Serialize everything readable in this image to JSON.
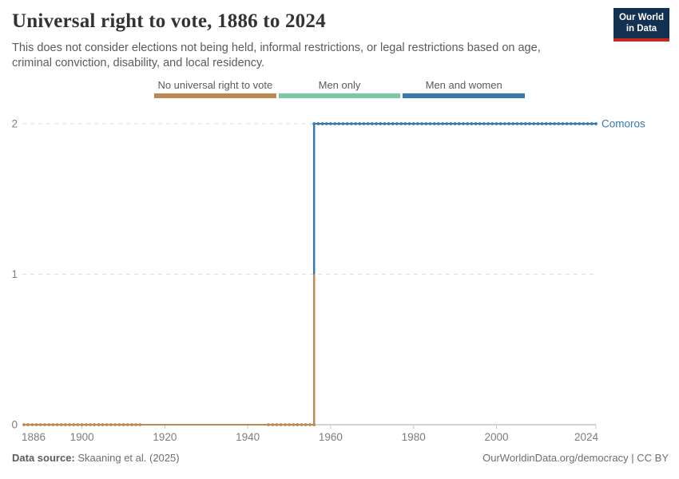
{
  "header": {
    "title": "Universal right to vote, 1886 to 2024",
    "subtitle": "This does not consider elections not being held, informal restrictions, or legal restrictions based on age, criminal conviction, disability, and local residency.",
    "logo": {
      "line1": "Our World",
      "line2": "in Data",
      "bg_color": "#12304F",
      "accent_color": "#C5281C"
    }
  },
  "legend": {
    "items": [
      {
        "label": "No universal right to vote",
        "color": "#BE8A52"
      },
      {
        "label": "Men only",
        "color": "#7DC8A4"
      },
      {
        "label": "Men and women",
        "color": "#3779B0"
      }
    ]
  },
  "chart_data": {
    "type": "line",
    "title": "Universal right to vote, 1886 to 2024",
    "entity": "Comoros",
    "entity_color": "#3779B0",
    "xlim": [
      1886,
      2024
    ],
    "ylim": [
      0,
      2
    ],
    "x_ticks": [
      1886,
      1900,
      1920,
      1940,
      1960,
      1980,
      2000,
      2024
    ],
    "y_ticks": [
      0,
      1,
      2
    ],
    "value_categories": {
      "0": "No universal right to vote",
      "1": "Men only",
      "2": "Men and women"
    },
    "series": [
      {
        "name": "Comoros",
        "steps": [
          {
            "from_year": 1886,
            "to_year": 1955,
            "value": 0,
            "category": "No universal right to vote",
            "color": "#BE8A52"
          },
          {
            "from_year": 1956,
            "to_year": 2024,
            "value": 2,
            "category": "Men and women",
            "color": "#3779B0"
          }
        ]
      }
    ],
    "render_segments": {
      "horizontal": [
        {
          "x1": 1886,
          "x2": 1914,
          "value": 0,
          "color": "#BE8A52",
          "markers": true
        },
        {
          "x1": 1914,
          "x2": 1945,
          "value": 0,
          "color": "#BE8A52",
          "markers": false
        },
        {
          "x1": 1945,
          "x2": 1956,
          "value": 0,
          "color": "#BE8A52",
          "markers": true
        },
        {
          "x1": 1956,
          "x2": 2024,
          "value": 2,
          "color": "#3779B0",
          "markers": true
        }
      ],
      "vertical": [
        {
          "x": 1956,
          "v1": 0,
          "v2": 1,
          "color": "#BE8A52"
        },
        {
          "x": 1956,
          "v1": 1,
          "v2": 2,
          "color": "#3779B0"
        }
      ]
    },
    "grid": {
      "dashed_values": [
        1,
        2
      ],
      "axis_value": 0,
      "grid_color": "#dcdcdc",
      "axis_color": "#a7a7a7",
      "tick_label_color": "#7d7d7d"
    }
  },
  "footer": {
    "source_label": "Data source:",
    "source": "Skaaning et al. (2025)",
    "right": "OurWorldinData.org/democracy | CC BY"
  }
}
